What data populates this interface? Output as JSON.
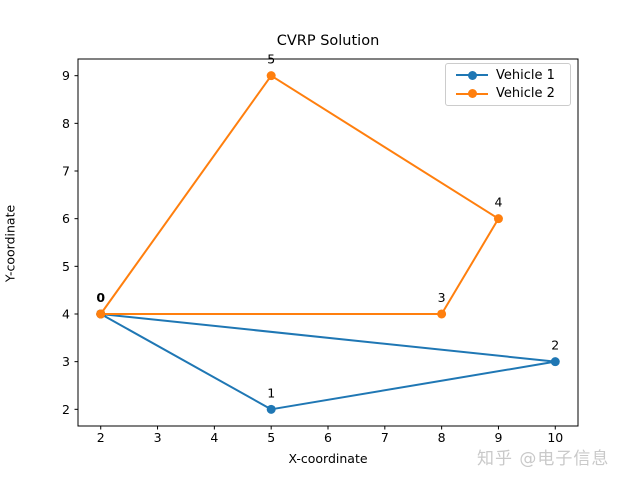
{
  "figure": {
    "title": "CVRP Solution",
    "xlabel": "X-coordinate",
    "ylabel": "Y-coordinate"
  },
  "legend": {
    "items": [
      {
        "label": "Vehicle 1",
        "color": "#1f77b4"
      },
      {
        "label": "Vehicle 2",
        "color": "#ff7f0e"
      }
    ]
  },
  "watermark": {
    "text": "知乎 @电子信息",
    "color": "#c9c9c9"
  },
  "chart_data": {
    "type": "line",
    "title": "CVRP Solution",
    "xlabel": "X-coordinate",
    "ylabel": "Y-coordinate",
    "xlim": [
      1.6,
      10.4
    ],
    "ylim": [
      1.65,
      9.35
    ],
    "xticks": [
      2,
      3,
      4,
      5,
      6,
      7,
      8,
      9,
      10
    ],
    "yticks": [
      2,
      3,
      4,
      5,
      6,
      7,
      8,
      9
    ],
    "grid": false,
    "legend_position": "upper right",
    "nodes": [
      {
        "id": 0,
        "x": 2,
        "y": 4,
        "label": "0",
        "bold": true
      },
      {
        "id": 1,
        "x": 5,
        "y": 2,
        "label": "1",
        "bold": false
      },
      {
        "id": 2,
        "x": 10,
        "y": 3,
        "label": "2",
        "bold": false
      },
      {
        "id": 3,
        "x": 8,
        "y": 4,
        "label": "3",
        "bold": false
      },
      {
        "id": 4,
        "x": 9,
        "y": 6,
        "label": "4",
        "bold": false
      },
      {
        "id": 5,
        "x": 5,
        "y": 9,
        "label": "5",
        "bold": false
      }
    ],
    "series": [
      {
        "name": "Vehicle 1",
        "color": "#1f77b4",
        "route": [
          [
            2,
            4
          ],
          [
            5,
            2
          ],
          [
            10,
            3
          ],
          [
            2,
            4
          ]
        ]
      },
      {
        "name": "Vehicle 2",
        "color": "#ff7f0e",
        "route": [
          [
            2,
            4
          ],
          [
            5,
            9
          ],
          [
            9,
            6
          ],
          [
            8,
            4
          ],
          [
            2,
            4
          ]
        ]
      }
    ]
  }
}
